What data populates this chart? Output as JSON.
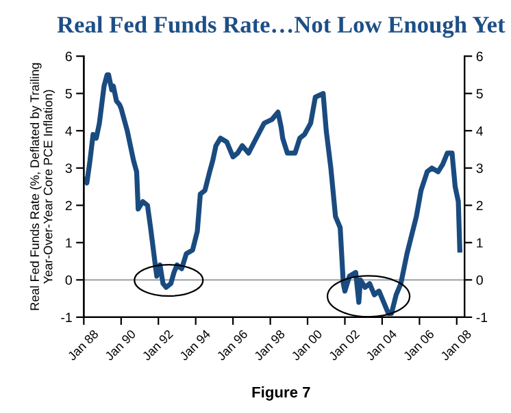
{
  "chart_data": {
    "type": "line",
    "title": "Real Fed Funds Rate…Not Low Enough Yet",
    "ylabel": "Real Fed Funds Rate (%, Deflated by Trailing\nYear-Over-Year Core PCE Inflation)",
    "annotations": [
      "Figure 7"
    ],
    "series": [
      {
        "color": "#1a4b80",
        "x": [
          "1988-01",
          "1988-03",
          "1988-05",
          "1988-07",
          "1988-09",
          "1988-11",
          "1989-02",
          "1989-04",
          "1989-05",
          "1989-07",
          "1989-08",
          "1989-10",
          "1989-12",
          "1990-01",
          "1990-05",
          "1990-09",
          "1990-11",
          "1990-12",
          "1991-03",
          "1991-06",
          "1991-08",
          "1991-11",
          "1991-12",
          "1992-02",
          "1992-04",
          "1992-06",
          "1992-09",
          "1992-11",
          "1993-01",
          "1993-04",
          "1993-07",
          "1993-11",
          "1994-02",
          "1994-04",
          "1994-07",
          "1994-10",
          "1994-12",
          "1995-02",
          "1995-05",
          "1995-09",
          "1996-01",
          "1996-04",
          "1996-07",
          "1996-11",
          "1997-04",
          "1997-09",
          "1998-02",
          "1998-06",
          "1998-08",
          "1998-09",
          "1998-12",
          "1999-05",
          "1999-08",
          "1999-11",
          "2000-03",
          "2000-06",
          "2000-11",
          "2001-01",
          "2001-04",
          "2001-07",
          "2001-10",
          "2001-12",
          "2002-01",
          "2002-04",
          "2002-08",
          "2002-10",
          "2002-11",
          "2003-02",
          "2003-05",
          "2003-08",
          "2003-11",
          "2004-02",
          "2004-05",
          "2004-07",
          "2004-10",
          "2005-01",
          "2005-05",
          "2005-08",
          "2005-11",
          "2006-02",
          "2006-06",
          "2006-09",
          "2007-01",
          "2007-04",
          "2007-07",
          "2007-10",
          "2007-12",
          "2008-02",
          "2008-03"
        ],
        "values": [
          2.7,
          2.6,
          3.2,
          3.9,
          3.8,
          4.2,
          5.2,
          5.5,
          5.5,
          5.1,
          5.2,
          4.8,
          4.7,
          4.6,
          4.0,
          3.2,
          2.9,
          1.9,
          2.1,
          2.0,
          1.4,
          0.4,
          0.1,
          0.4,
          -0.1,
          -0.2,
          -0.1,
          0.2,
          0.4,
          0.3,
          0.7,
          0.8,
          1.3,
          2.3,
          2.4,
          2.9,
          3.2,
          3.6,
          3.8,
          3.7,
          3.3,
          3.4,
          3.6,
          3.4,
          3.8,
          4.2,
          4.3,
          4.5,
          4.1,
          3.8,
          3.4,
          3.4,
          3.8,
          3.9,
          4.2,
          4.9,
          5.0,
          4.0,
          3.0,
          1.7,
          1.4,
          -0.1,
          -0.3,
          0.1,
          0.2,
          -0.6,
          0.0,
          -0.2,
          -0.1,
          -0.4,
          -0.3,
          -0.6,
          -0.9,
          -0.9,
          -0.4,
          -0.1,
          0.7,
          1.2,
          1.7,
          2.4,
          2.9,
          3.0,
          2.9,
          3.1,
          3.4,
          3.4,
          2.5,
          2.1,
          0.8
        ]
      }
    ],
    "xlim": [
      "1988-01",
      "2008-06"
    ],
    "xticks": [
      {
        "value": "1988-01",
        "label": "Jan 88"
      },
      {
        "value": "1990-01",
        "label": "Jan 90"
      },
      {
        "value": "1992-01",
        "label": "Jan 92"
      },
      {
        "value": "1994-01",
        "label": "Jan 94"
      },
      {
        "value": "1996-01",
        "label": "Jan 96"
      },
      {
        "value": "1998-01",
        "label": "Jan 98"
      },
      {
        "value": "2000-01",
        "label": "Jan 00"
      },
      {
        "value": "2002-01",
        "label": "Jan 02"
      },
      {
        "value": "2004-01",
        "label": "Jan 04"
      },
      {
        "value": "2006-01",
        "label": "Jan 06"
      },
      {
        "value": "2008-01",
        "label": "Jan 08"
      }
    ],
    "ylim": [
      -1,
      6
    ],
    "yticks": [
      -1,
      0,
      1,
      2,
      3,
      4,
      5,
      6
    ],
    "y2lim": [
      -1,
      6
    ],
    "y2ticks": [
      -1,
      0,
      1,
      2,
      3,
      4,
      5,
      6
    ],
    "ref_lines": [
      {
        "axis": "y",
        "value": 0,
        "color": "#a0a8b0"
      }
    ],
    "grid": false,
    "legend": false,
    "marker": "none",
    "line_style": "solid"
  }
}
